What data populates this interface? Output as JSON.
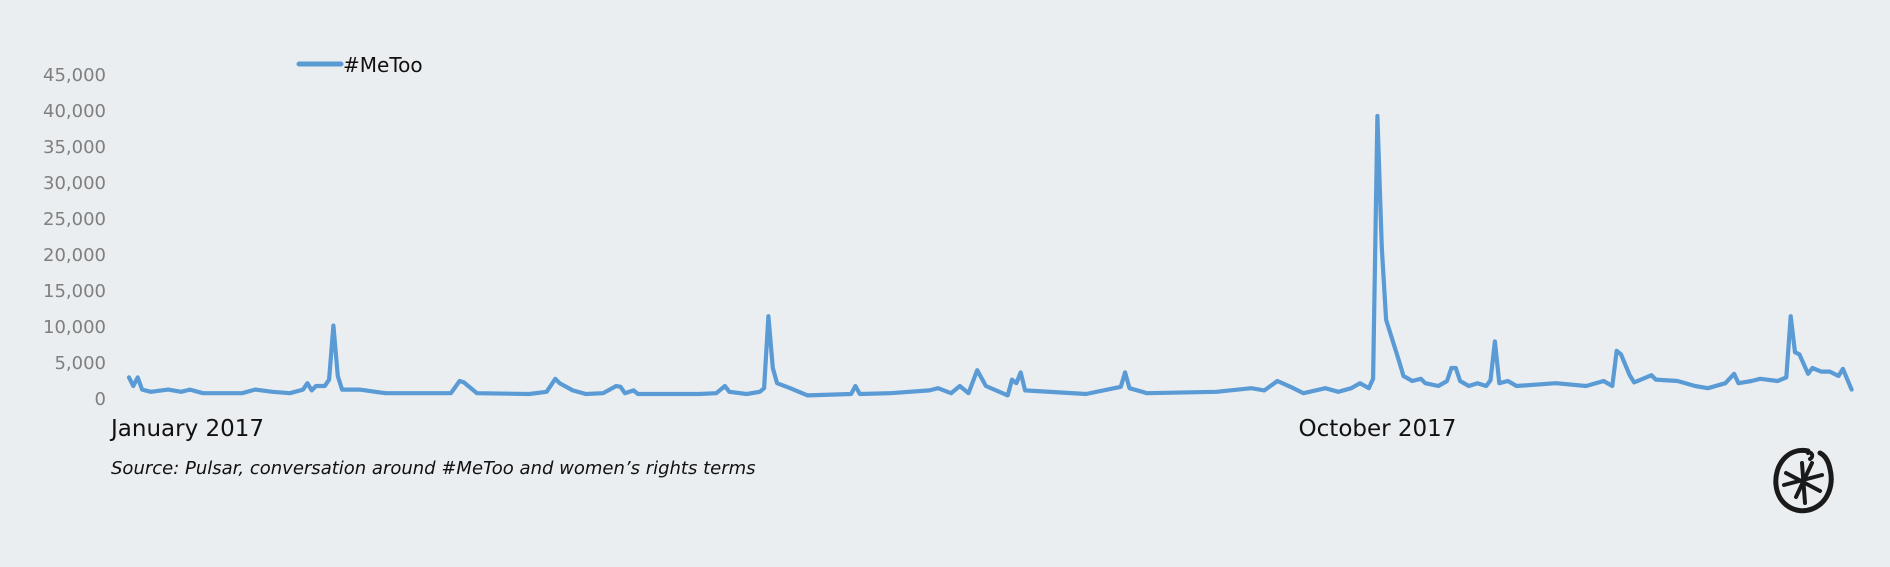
{
  "chart_data": {
    "type": "line",
    "title": "",
    "xlabel": "",
    "ylabel": "",
    "ylim": [
      0,
      45000
    ],
    "yticks": [
      "0",
      "5,000",
      "10,000",
      "15,000",
      "20,000",
      "25,000",
      "30,000",
      "35,000",
      "40,000",
      "45,000"
    ],
    "ytick_values": [
      0,
      5000,
      10000,
      15000,
      20000,
      25000,
      30000,
      35000,
      40000,
      45000
    ],
    "xlim": [
      "2017-01-01",
      "2018-02-01"
    ],
    "xtick_labels": [
      {
        "date": "2017-01-01",
        "label": "January 2017"
      },
      {
        "date": "2017-10-01",
        "label": "October 2017"
      }
    ],
    "grid": false,
    "legend_position": "top-left",
    "color": "#5b9bd5",
    "series": [
      {
        "name": "#MeToo",
        "points": [
          [
            "2017-01-01",
            3000
          ],
          [
            "2017-01-02",
            1800
          ],
          [
            "2017-01-03",
            3000
          ],
          [
            "2017-01-04",
            1300
          ],
          [
            "2017-01-06",
            1000
          ],
          [
            "2017-01-10",
            1300
          ],
          [
            "2017-01-13",
            1000
          ],
          [
            "2017-01-15",
            1300
          ],
          [
            "2017-01-18",
            800
          ],
          [
            "2017-01-27",
            800
          ],
          [
            "2017-01-30",
            1300
          ],
          [
            "2017-02-03",
            1000
          ],
          [
            "2017-02-07",
            800
          ],
          [
            "2017-02-10",
            1300
          ],
          [
            "2017-02-11",
            2200
          ],
          [
            "2017-02-12",
            1200
          ],
          [
            "2017-02-13",
            1800
          ],
          [
            "2017-02-15",
            1800
          ],
          [
            "2017-02-16",
            2700
          ],
          [
            "2017-02-17",
            10200
          ],
          [
            "2017-02-18",
            3200
          ],
          [
            "2017-02-19",
            1300
          ],
          [
            "2017-02-23",
            1300
          ],
          [
            "2017-03-01",
            800
          ],
          [
            "2017-03-12",
            800
          ],
          [
            "2017-03-16",
            800
          ],
          [
            "2017-03-18",
            2500
          ],
          [
            "2017-03-19",
            2300
          ],
          [
            "2017-03-22",
            800
          ],
          [
            "2017-04-03",
            700
          ],
          [
            "2017-04-07",
            1000
          ],
          [
            "2017-04-09",
            2800
          ],
          [
            "2017-04-10",
            2200
          ],
          [
            "2017-04-13",
            1200
          ],
          [
            "2017-04-16",
            700
          ],
          [
            "2017-04-20",
            800
          ],
          [
            "2017-04-23",
            1800
          ],
          [
            "2017-04-24",
            1700
          ],
          [
            "2017-04-25",
            800
          ],
          [
            "2017-04-27",
            1200
          ],
          [
            "2017-04-28",
            700
          ],
          [
            "2017-05-12",
            700
          ],
          [
            "2017-05-16",
            800
          ],
          [
            "2017-05-18",
            1800
          ],
          [
            "2017-05-19",
            1000
          ],
          [
            "2017-05-23",
            700
          ],
          [
            "2017-05-26",
            1000
          ],
          [
            "2017-05-27",
            1500
          ],
          [
            "2017-05-28",
            11500
          ],
          [
            "2017-05-29",
            4300
          ],
          [
            "2017-05-30",
            2200
          ],
          [
            "2017-06-02",
            1500
          ],
          [
            "2017-06-06",
            500
          ],
          [
            "2017-06-16",
            700
          ],
          [
            "2017-06-17",
            1800
          ],
          [
            "2017-06-18",
            700
          ],
          [
            "2017-06-25",
            800
          ],
          [
            "2017-07-04",
            1200
          ],
          [
            "2017-07-06",
            1500
          ],
          [
            "2017-07-09",
            800
          ],
          [
            "2017-07-11",
            1800
          ],
          [
            "2017-07-13",
            800
          ],
          [
            "2017-07-15",
            4000
          ],
          [
            "2017-07-17",
            1800
          ],
          [
            "2017-07-22",
            500
          ],
          [
            "2017-07-23",
            2700
          ],
          [
            "2017-07-24",
            2200
          ],
          [
            "2017-07-25",
            3700
          ],
          [
            "2017-07-26",
            1200
          ],
          [
            "2017-08-09",
            700
          ],
          [
            "2017-08-17",
            1700
          ],
          [
            "2017-08-18",
            3700
          ],
          [
            "2017-08-19",
            1500
          ],
          [
            "2017-08-23",
            800
          ],
          [
            "2017-09-08",
            1000
          ],
          [
            "2017-09-16",
            1500
          ],
          [
            "2017-09-19",
            1200
          ],
          [
            "2017-09-22",
            2500
          ],
          [
            "2017-09-25",
            1700
          ],
          [
            "2017-09-28",
            800
          ],
          [
            "2017-10-03",
            1500
          ],
          [
            "2017-10-06",
            1000
          ],
          [
            "2017-10-09",
            1500
          ],
          [
            "2017-10-11",
            2200
          ],
          [
            "2017-10-13",
            1500
          ],
          [
            "2017-10-14",
            2800
          ],
          [
            "2017-10-15",
            39300
          ],
          [
            "2017-10-16",
            21000
          ],
          [
            "2017-10-17",
            11000
          ],
          [
            "2017-10-20",
            5200
          ],
          [
            "2017-10-21",
            3200
          ],
          [
            "2017-10-23",
            2500
          ],
          [
            "2017-10-25",
            2800
          ],
          [
            "2017-10-26",
            2200
          ],
          [
            "2017-10-29",
            1800
          ],
          [
            "2017-10-31",
            2500
          ],
          [
            "2017-11-01",
            4300
          ],
          [
            "2017-11-02",
            4300
          ],
          [
            "2017-11-03",
            2500
          ],
          [
            "2017-11-05",
            1800
          ],
          [
            "2017-11-07",
            2200
          ],
          [
            "2017-11-09",
            1800
          ],
          [
            "2017-11-10",
            2600
          ],
          [
            "2017-11-11",
            8000
          ],
          [
            "2017-11-12",
            2200
          ],
          [
            "2017-11-14",
            2500
          ],
          [
            "2017-11-16",
            1800
          ],
          [
            "2017-11-25",
            2200
          ],
          [
            "2017-12-02",
            1800
          ],
          [
            "2017-12-06",
            2500
          ],
          [
            "2017-12-08",
            1800
          ],
          [
            "2017-12-09",
            6700
          ],
          [
            "2017-12-10",
            6200
          ],
          [
            "2017-12-12",
            3300
          ],
          [
            "2017-12-13",
            2300
          ],
          [
            "2017-12-17",
            3300
          ],
          [
            "2017-12-18",
            2700
          ],
          [
            "2017-12-23",
            2500
          ],
          [
            "2017-12-27",
            1800
          ],
          [
            "2017-12-30",
            1500
          ],
          [
            "2018-01-03",
            2200
          ],
          [
            "2018-01-05",
            3500
          ],
          [
            "2018-01-06",
            2200
          ],
          [
            "2018-01-09",
            2500
          ],
          [
            "2018-01-11",
            2800
          ],
          [
            "2018-01-15",
            2500
          ],
          [
            "2018-01-17",
            3000
          ],
          [
            "2018-01-18",
            11500
          ],
          [
            "2018-01-19",
            6500
          ],
          [
            "2018-01-20",
            6200
          ],
          [
            "2018-01-22",
            3500
          ],
          [
            "2018-01-23",
            4300
          ],
          [
            "2018-01-25",
            3800
          ],
          [
            "2018-01-27",
            3800
          ],
          [
            "2018-01-29",
            3200
          ],
          [
            "2018-01-30",
            4200
          ],
          [
            "2018-02-01",
            1300
          ]
        ]
      }
    ]
  },
  "legend": {
    "label": "#MeToo"
  },
  "source": "Source: Pulsar, conversation around #MeToo and women’s rights terms",
  "logo": {
    "icon": "asterisk-in-circle-logo"
  }
}
